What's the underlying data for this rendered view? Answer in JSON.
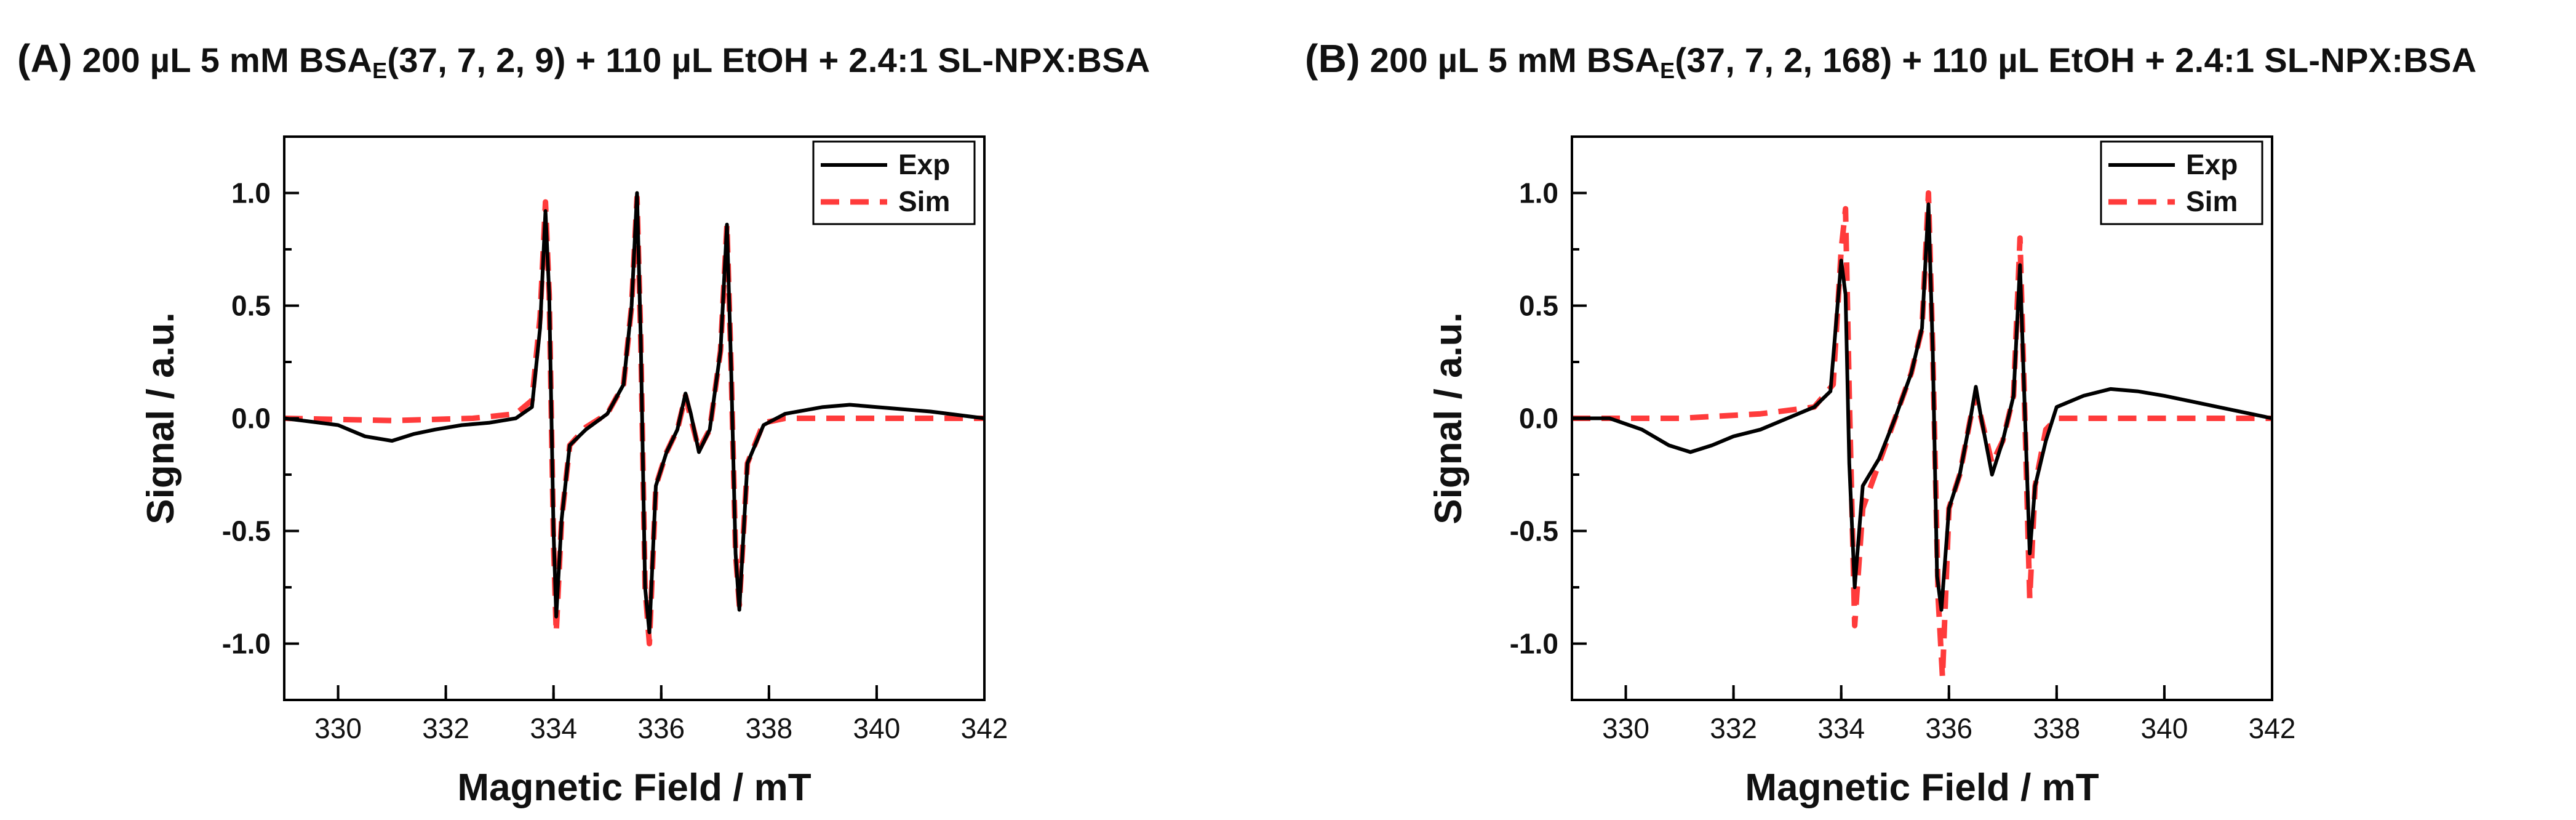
{
  "panels": [
    {
      "label": "(A)",
      "title_pre": "200 µL 5 mM BSA",
      "title_sub": "E",
      "title_post": "(37, 7, 2, 9) + 110 µL EtOH + 2.4:1 SL-NPX:BSA"
    },
    {
      "label": "(B)",
      "title_pre": "200 µL 5 mM BSA",
      "title_sub": "E",
      "title_post": "(37, 7, 2, 168) + 110 µL EtOH + 2.4:1 SL-NPX:BSA"
    }
  ],
  "chart_data": [
    {
      "type": "line",
      "xlabel": "Magnetic Field / mT",
      "ylabel": "Signal / a.u.",
      "xlim": [
        329,
        342
      ],
      "ylim": [
        -1.25,
        1.25
      ],
      "xticks": [
        330,
        332,
        334,
        336,
        338,
        340,
        342
      ],
      "yticks": [
        -1.0,
        -0.5,
        0.0,
        0.5,
        1.0
      ],
      "ytick_labels": [
        "-1.0",
        "-0.5",
        "0.0",
        "0.5",
        "1.0"
      ],
      "grid": false,
      "legend_position": "top-right",
      "series": [
        {
          "name": "Exp",
          "color": "#000000",
          "style": "solid",
          "x": [
            329.0,
            330.0,
            330.5,
            331.0,
            331.4,
            331.8,
            332.3,
            332.8,
            333.3,
            333.6,
            333.75,
            333.85,
            333.92,
            334.0,
            334.05,
            334.15,
            334.3,
            334.6,
            335.0,
            335.3,
            335.45,
            335.55,
            335.62,
            335.7,
            335.78,
            335.9,
            336.1,
            336.3,
            336.45,
            336.55,
            336.7,
            336.9,
            337.1,
            337.22,
            337.3,
            337.38,
            337.45,
            337.6,
            337.9,
            338.3,
            339.0,
            339.5,
            340.0,
            341.0,
            342.0
          ],
          "y": [
            0.0,
            -0.03,
            -0.08,
            -0.1,
            -0.07,
            -0.05,
            -0.03,
            -0.02,
            0.0,
            0.05,
            0.4,
            0.92,
            0.55,
            -0.5,
            -0.88,
            -0.45,
            -0.12,
            -0.05,
            0.02,
            0.15,
            0.5,
            1.0,
            0.35,
            -0.75,
            -0.95,
            -0.3,
            -0.15,
            -0.05,
            0.11,
            0.02,
            -0.15,
            -0.05,
            0.3,
            0.86,
            0.2,
            -0.6,
            -0.85,
            -0.2,
            -0.03,
            0.02,
            0.05,
            0.06,
            0.05,
            0.03,
            0.0
          ]
        },
        {
          "name": "Sim",
          "color": "#ff3b3b",
          "style": "dashed",
          "x": [
            329.0,
            331.0,
            332.5,
            333.3,
            333.6,
            333.75,
            333.85,
            333.92,
            334.0,
            334.05,
            334.15,
            334.3,
            334.6,
            335.0,
            335.3,
            335.45,
            335.55,
            335.62,
            335.7,
            335.78,
            335.9,
            336.1,
            336.3,
            336.45,
            336.55,
            336.7,
            336.9,
            337.1,
            337.22,
            337.3,
            337.38,
            337.45,
            337.6,
            337.9,
            338.3,
            339.0,
            340.0,
            341.0,
            342.0
          ],
          "y": [
            0.0,
            -0.01,
            0.0,
            0.02,
            0.08,
            0.45,
            0.96,
            0.55,
            -0.55,
            -0.95,
            -0.45,
            -0.12,
            -0.04,
            0.02,
            0.15,
            0.5,
            0.98,
            0.35,
            -0.75,
            -1.0,
            -0.3,
            -0.15,
            -0.05,
            0.1,
            0.0,
            -0.14,
            -0.05,
            0.3,
            0.86,
            0.2,
            -0.6,
            -0.83,
            -0.2,
            -0.02,
            0.0,
            0.0,
            0.0,
            0.0,
            0.0
          ]
        }
      ]
    },
    {
      "type": "line",
      "xlabel": "Magnetic Field / mT",
      "ylabel": "Signal / a.u.",
      "xlim": [
        329,
        342
      ],
      "ylim": [
        -1.25,
        1.25
      ],
      "xticks": [
        330,
        332,
        334,
        336,
        338,
        340,
        342
      ],
      "yticks": [
        -1.0,
        -0.5,
        0.0,
        0.5,
        1.0
      ],
      "ytick_labels": [
        "-1.0",
        "-0.5",
        "0.0",
        "0.5",
        "1.0"
      ],
      "grid": false,
      "legend_position": "top-right",
      "series": [
        {
          "name": "Exp",
          "color": "#000000",
          "style": "solid",
          "x": [
            329.0,
            329.7,
            330.3,
            330.8,
            331.2,
            331.6,
            332.0,
            332.5,
            333.0,
            333.5,
            333.8,
            334.0,
            334.08,
            334.15,
            334.25,
            334.4,
            334.7,
            335.0,
            335.3,
            335.5,
            335.62,
            335.7,
            335.78,
            335.86,
            336.0,
            336.2,
            336.4,
            336.5,
            336.6,
            336.8,
            337.0,
            337.2,
            337.32,
            337.4,
            337.5,
            337.6,
            337.8,
            338.0,
            338.5,
            339.0,
            339.5,
            340.0,
            341.0,
            342.0
          ],
          "y": [
            0.0,
            0.0,
            -0.05,
            -0.12,
            -0.15,
            -0.12,
            -0.08,
            -0.05,
            0.0,
            0.05,
            0.12,
            0.7,
            0.55,
            -0.2,
            -0.75,
            -0.3,
            -0.18,
            0.0,
            0.2,
            0.4,
            0.95,
            0.3,
            -0.7,
            -0.85,
            -0.4,
            -0.25,
            0.0,
            0.14,
            0.0,
            -0.25,
            -0.1,
            0.1,
            0.68,
            0.1,
            -0.6,
            -0.3,
            -0.1,
            0.05,
            0.1,
            0.13,
            0.12,
            0.1,
            0.05,
            0.0
          ]
        },
        {
          "name": "Sim",
          "color": "#ff3b3b",
          "style": "dashed",
          "x": [
            329.0,
            331.0,
            332.5,
            333.5,
            333.85,
            334.0,
            334.08,
            334.15,
            334.25,
            334.4,
            334.7,
            335.0,
            335.3,
            335.5,
            335.62,
            335.7,
            335.8,
            335.88,
            336.0,
            336.2,
            336.4,
            336.5,
            336.6,
            336.8,
            337.0,
            337.2,
            337.32,
            337.4,
            337.5,
            337.6,
            337.8,
            338.0,
            339.0,
            340.0,
            341.0,
            342.0
          ],
          "y": [
            0.0,
            0.0,
            0.02,
            0.05,
            0.15,
            0.75,
            0.93,
            0.1,
            -0.92,
            -0.4,
            -0.2,
            0.0,
            0.2,
            0.4,
            1.0,
            0.3,
            -0.8,
            -1.15,
            -0.4,
            -0.25,
            0.0,
            0.1,
            0.0,
            -0.2,
            -0.1,
            0.1,
            0.8,
            0.1,
            -0.8,
            -0.3,
            -0.05,
            0.0,
            0.0,
            0.0,
            0.0,
            0.0
          ]
        }
      ]
    }
  ]
}
